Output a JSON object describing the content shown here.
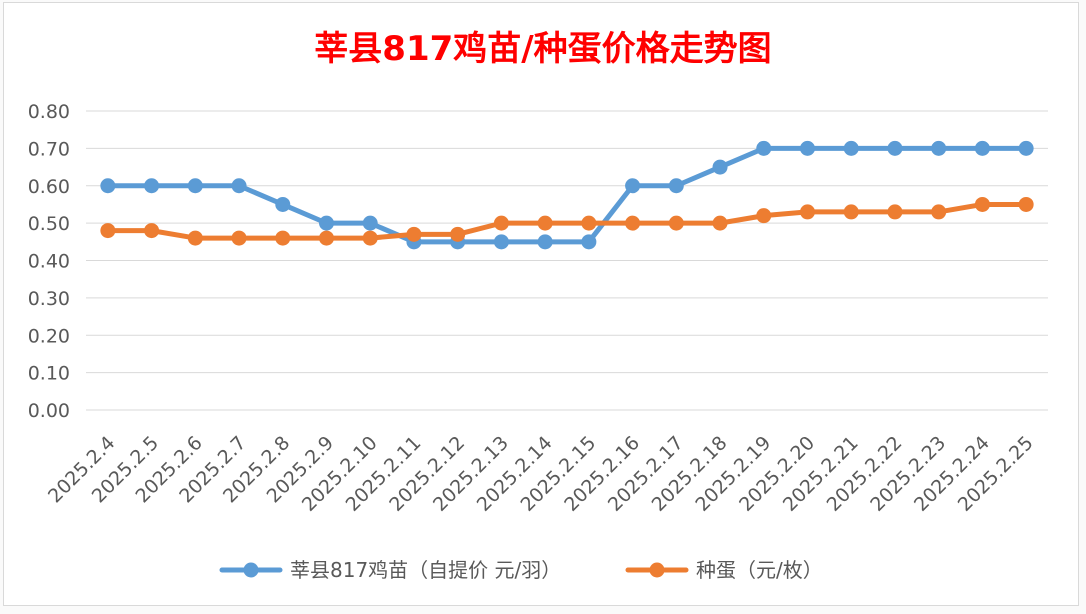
{
  "chart_data": {
    "type": "line",
    "title": "莘县817鸡苗/种蛋价格走势图",
    "xlabel": "",
    "ylabel": "",
    "categories": [
      "2025.2.4",
      "2025.2.5",
      "2025.2.6",
      "2025.2.7",
      "2025.2.8",
      "2025.2.9",
      "2025.2.10",
      "2025.2.11",
      "2025.2.12",
      "2025.2.13",
      "2025.2.14",
      "2025.2.15",
      "2025.2.16",
      "2025.2.17",
      "2025.2.18",
      "2025.2.19",
      "2025.2.20",
      "2025.2.21",
      "2025.2.22",
      "2025.2.23",
      "2025.2.24",
      "2025.2.25"
    ],
    "ylim": [
      0,
      0.8
    ],
    "yticks": [
      "0.00",
      "0.10",
      "0.20",
      "0.30",
      "0.40",
      "0.50",
      "0.60",
      "0.70",
      "0.80"
    ],
    "grid": true,
    "legend_position": "bottom",
    "series": [
      {
        "name": "莘县817鸡苗（自提价 元/羽）",
        "color": "#5b9bd5",
        "values": [
          0.6,
          0.6,
          0.6,
          0.6,
          0.55,
          0.5,
          0.5,
          0.45,
          0.45,
          0.45,
          0.45,
          0.45,
          0.6,
          0.6,
          0.65,
          0.7,
          0.7,
          0.7,
          0.7,
          0.7,
          0.7,
          0.7
        ]
      },
      {
        "name": "种蛋（元/枚）",
        "color": "#ed7d31",
        "values": [
          0.48,
          0.48,
          0.46,
          0.46,
          0.46,
          0.46,
          0.46,
          0.47,
          0.47,
          0.5,
          0.5,
          0.5,
          0.5,
          0.5,
          0.5,
          0.52,
          0.53,
          0.53,
          0.53,
          0.53,
          0.55,
          0.55
        ]
      }
    ]
  }
}
